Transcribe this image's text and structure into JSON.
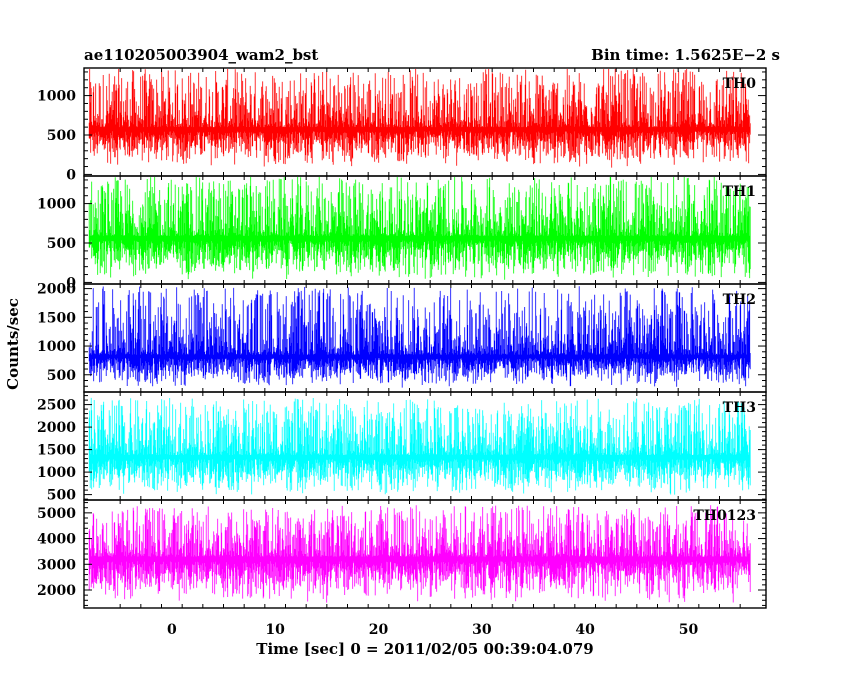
{
  "header": {
    "left_title": "ae110205003904_wam2_bst",
    "right_title": "Bin time: 1.5625E−2 s"
  },
  "chart_data": {
    "type": "line",
    "xlabel": "Time [sec] 0 = 2011/02/05 00:39:04.079",
    "ylabel": "Counts/sec",
    "xlim": [
      -8.5,
      57.5
    ],
    "x_ticks": [
      0,
      10,
      20,
      30,
      40,
      50
    ],
    "data_x_range": [
      -8,
      56
    ],
    "bin_time_s": 0.015625,
    "panels": [
      {
        "name": "TH0",
        "color": "#ff0000",
        "ylim": [
          -20,
          1350
        ],
        "y_ticks": [
          0,
          500,
          1000
        ],
        "y_tick_labels": [
          "0",
          "500",
          "1000"
        ],
        "mean": 600,
        "min": 80,
        "max": 1350
      },
      {
        "name": "TH1",
        "color": "#00ff00",
        "ylim": [
          -20,
          1350
        ],
        "y_ticks": [
          0,
          500,
          1000
        ],
        "y_tick_labels": [
          "0",
          "500",
          "1000"
        ],
        "mean": 590,
        "min": 20,
        "max": 1350
      },
      {
        "name": "TH2",
        "color": "#0000ff",
        "ylim": [
          200,
          2080
        ],
        "y_ticks": [
          500,
          1000,
          1500,
          2000
        ],
        "y_tick_labels": [
          "500",
          "1000",
          "1500",
          "2000"
        ],
        "mean": 850,
        "min": 270,
        "max": 2040
      },
      {
        "name": "TH3",
        "color": "#00ffff",
        "ylim": [
          380,
          2780
        ],
        "y_ticks": [
          500,
          1000,
          1500,
          2000,
          2500
        ],
        "y_tick_labels": [
          "500",
          "1000",
          "1500",
          "2000",
          "2500"
        ],
        "mean": 1380,
        "min": 480,
        "max": 2650
      },
      {
        "name": "TH0123",
        "color": "#ff00ff",
        "ylim": [
          1300,
          5500
        ],
        "y_ticks": [
          2000,
          3000,
          4000,
          5000
        ],
        "y_tick_labels": [
          "2000",
          "3000",
          "4000",
          "5000"
        ],
        "mean": 3300,
        "min": 1500,
        "max": 5300
      }
    ]
  }
}
